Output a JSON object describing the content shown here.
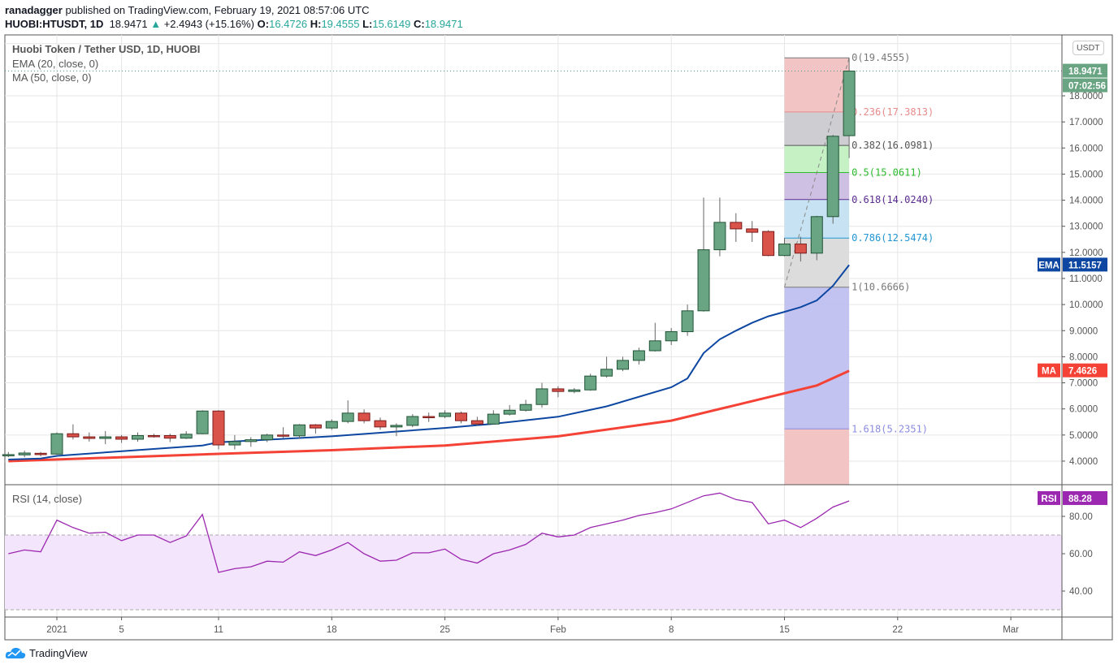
{
  "header": {
    "publisher": "ranadagger",
    "published_text": "published on TradingView.com, February 19, 2021 08:57:06 UTC",
    "symbol": "HUOBI:HTUSDT, 1D",
    "last": "18.9471",
    "change": "+2.4943 (+15.16%)",
    "o_label": "O:",
    "o": "16.4726",
    "h_label": "H:",
    "h": "19.4555",
    "l_label": "L:",
    "l": "15.6149",
    "c_label": "C:",
    "c": "18.9471"
  },
  "legend": {
    "title": "Huobi Token / Tether USD, 1D, HUOBI",
    "ema": "EMA (20, close, 0)",
    "ma": "MA (50, close, 0)",
    "rsi": "RSI (14, close)"
  },
  "currency_button": "USDT",
  "tags": {
    "price": "18.9471",
    "countdown": "07:02:56",
    "ema_name": "EMA",
    "ema_value": "11.5157",
    "ma_name": "MA",
    "ma_value": "7.4626",
    "rsi_name": "RSI",
    "rsi_value": "88.28"
  },
  "colors": {
    "up": "#6aa583",
    "up_border": "#225437",
    "down": "#d9534a",
    "down_border": "#7a1c1c",
    "ema": "#0d47a1",
    "ma": "#f44336",
    "rsi": "#9c27b0",
    "rsi_band": "#f3e5fc",
    "price_tag": "#6aa583"
  },
  "chart_data": {
    "type": "candlestick",
    "title": "Huobi Token / Tether USD, 1D, HUOBI",
    "first_candle_day_offset_from_jan1": -3,
    "candles_ohlc": [
      [
        4.22,
        4.35,
        4.15,
        4.25
      ],
      [
        4.24,
        4.4,
        4.15,
        4.31
      ],
      [
        4.3,
        4.35,
        4.18,
        4.25
      ],
      [
        4.27,
        5.1,
        4.25,
        5.05
      ],
      [
        5.05,
        5.41,
        4.83,
        4.93
      ],
      [
        4.93,
        5.1,
        4.75,
        4.87
      ],
      [
        4.87,
        5.15,
        4.65,
        4.93
      ],
      [
        4.93,
        5.0,
        4.7,
        4.84
      ],
      [
        4.84,
        5.1,
        4.75,
        4.98
      ],
      [
        4.98,
        5.05,
        4.9,
        4.97
      ],
      [
        4.98,
        5.05,
        4.73,
        4.88
      ],
      [
        4.88,
        5.15,
        4.85,
        5.03
      ],
      [
        5.05,
        5.95,
        5.03,
        5.92
      ],
      [
        5.92,
        5.95,
        4.45,
        4.62
      ],
      [
        4.62,
        5.0,
        4.45,
        4.75
      ],
      [
        4.75,
        4.92,
        4.55,
        4.82
      ],
      [
        4.82,
        5.05,
        4.73,
        5.0
      ],
      [
        5.0,
        5.3,
        4.88,
        4.97
      ],
      [
        4.97,
        5.42,
        4.85,
        5.39
      ],
      [
        5.39,
        5.42,
        5.05,
        5.27
      ],
      [
        5.27,
        5.6,
        5.2,
        5.52
      ],
      [
        5.52,
        6.33,
        5.45,
        5.84
      ],
      [
        5.84,
        5.98,
        5.45,
        5.55
      ],
      [
        5.55,
        5.67,
        5.2,
        5.31
      ],
      [
        5.31,
        5.45,
        4.96,
        5.37
      ],
      [
        5.37,
        5.8,
        5.3,
        5.71
      ],
      [
        5.71,
        5.86,
        5.5,
        5.7
      ],
      [
        5.71,
        5.95,
        5.65,
        5.84
      ],
      [
        5.84,
        5.9,
        5.45,
        5.55
      ],
      [
        5.55,
        5.7,
        5.35,
        5.42
      ],
      [
        5.42,
        5.95,
        5.4,
        5.8
      ],
      [
        5.8,
        6.15,
        5.75,
        5.95
      ],
      [
        5.95,
        6.35,
        5.9,
        6.17
      ],
      [
        6.17,
        7.0,
        6.05,
        6.77
      ],
      [
        6.77,
        6.87,
        6.45,
        6.67
      ],
      [
        6.67,
        6.8,
        6.6,
        6.73
      ],
      [
        6.73,
        7.35,
        6.7,
        7.26
      ],
      [
        7.26,
        8.0,
        7.2,
        7.52
      ],
      [
        7.52,
        8.0,
        7.45,
        7.86
      ],
      [
        7.86,
        8.35,
        7.7,
        8.23
      ],
      [
        8.23,
        9.3,
        8.2,
        8.61
      ],
      [
        8.61,
        9.1,
        8.45,
        8.96
      ],
      [
        8.96,
        10.0,
        8.8,
        9.76
      ],
      [
        9.76,
        14.1,
        9.73,
        12.1
      ],
      [
        12.1,
        14.1,
        11.85,
        13.15
      ],
      [
        13.15,
        13.5,
        12.4,
        12.9
      ],
      [
        12.9,
        13.2,
        12.4,
        12.77
      ],
      [
        12.8,
        12.85,
        11.85,
        11.88
      ],
      [
        11.88,
        12.55,
        11.85,
        12.32
      ],
      [
        12.32,
        12.6,
        11.65,
        11.97
      ],
      [
        11.97,
        13.4,
        11.7,
        13.37
      ],
      [
        13.37,
        16.5,
        13.1,
        16.45
      ],
      [
        16.4726,
        19.4555,
        15.6149,
        18.9471
      ]
    ],
    "ema20_points_day_value": [
      [
        -3,
        4.06
      ],
      [
        -1,
        4.1
      ],
      [
        0,
        4.2
      ],
      [
        9,
        4.6
      ],
      [
        10,
        4.72
      ],
      [
        17,
        4.95
      ],
      [
        24,
        5.27
      ],
      [
        27,
        5.43
      ],
      [
        31,
        5.7
      ],
      [
        34,
        6.1
      ],
      [
        38,
        6.83
      ],
      [
        39,
        7.17
      ],
      [
        40,
        8.14
      ],
      [
        41,
        8.67
      ],
      [
        42,
        9.0
      ],
      [
        43,
        9.3
      ],
      [
        44,
        9.55
      ],
      [
        45,
        9.72
      ],
      [
        46,
        9.9
      ],
      [
        47,
        10.16
      ],
      [
        48,
        10.72
      ],
      [
        49,
        11.5157
      ]
    ],
    "ma50_points_day_value": [
      [
        -3,
        4.0
      ],
      [
        10,
        4.28
      ],
      [
        17,
        4.42
      ],
      [
        24,
        4.6
      ],
      [
        31,
        4.95
      ],
      [
        38,
        5.55
      ],
      [
        42,
        6.15
      ],
      [
        45,
        6.6
      ],
      [
        47,
        6.9
      ],
      [
        49,
        7.4626
      ]
    ],
    "rsi": [
      60,
      62,
      61,
      78,
      74,
      71,
      71.5,
      67,
      70,
      70,
      66,
      69.5,
      81,
      50,
      52,
      53,
      56,
      55.5,
      61,
      59,
      62,
      66,
      60,
      56,
      56.5,
      60.5,
      60.5,
      62.5,
      57,
      55,
      60,
      62,
      65,
      71,
      69,
      70,
      74,
      76,
      78,
      80.5,
      82,
      84,
      87.5,
      91,
      92.5,
      89,
      87.5,
      76,
      78,
      74,
      79,
      85,
      88.28
    ],
    "rsi_bands": [
      30,
      70
    ],
    "price_ylim": [
      3.4,
      20.0
    ],
    "price_ticks": [
      "4.0000",
      "5.0000",
      "6.0000",
      "7.0000",
      "8.0000",
      "9.0000",
      "10.0000",
      "11.0000",
      "12.0000",
      "13.0000",
      "14.0000",
      "15.0000",
      "16.0000",
      "17.0000",
      "18.0000"
    ],
    "price_tick_values": [
      4,
      5,
      6,
      7,
      8,
      9,
      10,
      11,
      12,
      13,
      14,
      15,
      16,
      17,
      18
    ],
    "rsi_ticks": [
      "40.00",
      "60.00",
      "80.00"
    ],
    "rsi_tick_values": [
      40,
      60,
      80
    ],
    "time_ticks": [
      {
        "label": "2021",
        "day": 0
      },
      {
        "label": "5",
        "day": 4
      },
      {
        "label": "11",
        "day": 10
      },
      {
        "label": "18",
        "day": 17
      },
      {
        "label": "25",
        "day": 24
      },
      {
        "label": "Feb",
        "day": 31
      },
      {
        "label": "8",
        "day": 38
      },
      {
        "label": "15",
        "day": 45
      },
      {
        "label": "22",
        "day": 52
      },
      {
        "label": "Mar",
        "day": 59
      }
    ],
    "fibonacci": {
      "start_day": 45,
      "end_day": 49,
      "levels": [
        {
          "label": "0(19.4555)",
          "value": 19.4555,
          "color": "#787878",
          "zone": "#f2c1c1"
        },
        {
          "label": "0.236(17.3813)",
          "value": 17.3813,
          "color": "#e88a8a",
          "zone": "#cbcbd0"
        },
        {
          "label": "0.382(16.0981)",
          "value": 16.0981,
          "color": "#555555",
          "zone": "#c2f0c2"
        },
        {
          "label": "0.5(15.0611)",
          "value": 15.0611,
          "color": "#2bbb2b",
          "zone": "#cbbde0"
        },
        {
          "label": "0.618(14.0240)",
          "value": 14.024,
          "color": "#5b2c91",
          "zone": "#c3e0f2"
        },
        {
          "label": "0.786(12.5474)",
          "value": 12.5474,
          "color": "#2196d3",
          "zone": "#dadada"
        },
        {
          "label": "1(10.6666)",
          "value": 10.6666,
          "color": "#787878",
          "zone": "#c0c0f0"
        },
        {
          "label": "1.618(5.2351)",
          "value": 5.2351,
          "color": "#8c8ce0",
          "zone": "#f2c1c1"
        }
      ]
    }
  },
  "branding": {
    "logo_text": "TradingView"
  }
}
